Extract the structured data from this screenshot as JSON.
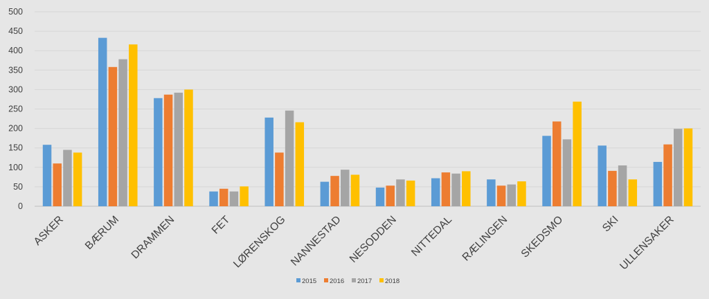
{
  "chart_data": {
    "type": "bar",
    "title": "",
    "xlabel": "",
    "ylabel": "",
    "ylim": [
      0,
      500
    ],
    "y_ticks": [
      "0",
      "50",
      "100",
      "150",
      "200",
      "250",
      "300",
      "350",
      "400",
      "450",
      "500"
    ],
    "grid": true,
    "legend_position": "bottom",
    "categories": [
      "ASKER",
      "BÆRUM",
      "DRAMMEN",
      "FET",
      "LØRENSKOG",
      "NANNESTAD",
      "NESODDEN",
      "NITTEDAL",
      "RÆLINGEN",
      "SKEDSMO",
      "SKI",
      "ULLENSAKER"
    ],
    "series": [
      {
        "name": "2015",
        "color": "#5b9bd5",
        "values": [
          158,
          433,
          278,
          38,
          228,
          63,
          48,
          72,
          69,
          181,
          156,
          114
        ]
      },
      {
        "name": "2016",
        "color": "#ed7d31",
        "values": [
          110,
          358,
          287,
          45,
          138,
          78,
          53,
          87,
          53,
          218,
          91,
          159
        ]
      },
      {
        "name": "2017",
        "color": "#a5a5a5",
        "values": [
          145,
          378,
          292,
          38,
          246,
          94,
          69,
          84,
          56,
          172,
          105,
          199
        ]
      },
      {
        "name": "2018",
        "color": "#ffc000",
        "values": [
          138,
          416,
          300,
          51,
          216,
          81,
          66,
          90,
          64,
          269,
          69,
          200
        ]
      }
    ]
  }
}
